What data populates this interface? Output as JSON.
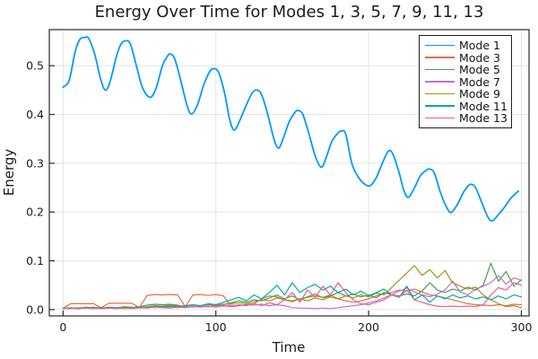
{
  "chart_data": {
    "type": "line",
    "title": "Energy Over Time for Modes 1, 3, 5, 7, 9, 11, 13",
    "xlabel": "Time",
    "ylabel": "Energy",
    "xlim": [
      -9,
      305
    ],
    "ylim": [
      -0.013,
      0.574
    ],
    "xticks": [
      0,
      100,
      200,
      300
    ],
    "xtick_labels": [
      "0",
      "100",
      "200",
      "300"
    ],
    "yticks": [
      0.0,
      0.1,
      0.2,
      0.3,
      0.4,
      0.5
    ],
    "ytick_labels": [
      "0.0",
      "0.1",
      "0.2",
      "0.3",
      "0.4",
      "0.5"
    ],
    "grid": true,
    "legend_position": "top-right",
    "background_color": "#ffffff",
    "shared_x": [
      0,
      5,
      10,
      15,
      20,
      25,
      30,
      35,
      40,
      45,
      50,
      55,
      60,
      65,
      70,
      75,
      80,
      85,
      90,
      95,
      100,
      105,
      110,
      115,
      120,
      125,
      130,
      135,
      140,
      145,
      150,
      155,
      160,
      165,
      170,
      175,
      180,
      185,
      190,
      195,
      200,
      205,
      210,
      215,
      220,
      225,
      230,
      235,
      240,
      245,
      250,
      255,
      260,
      265,
      270,
      275,
      280,
      285,
      290,
      295,
      300
    ],
    "series": [
      {
        "name": "Mode 1",
        "color": "#009AFA",
        "line_width": 1.8,
        "smooth": true,
        "x": [
          0,
          4,
          8,
          11,
          14,
          17,
          21,
          25,
          28,
          31,
          35,
          38,
          41,
          44,
          48,
          52,
          57,
          61,
          65,
          68,
          70,
          73,
          77,
          81,
          84,
          88,
          92,
          96,
          99,
          102,
          106,
          109,
          112,
          116,
          120,
          124,
          127,
          130,
          134,
          138,
          141,
          144,
          148,
          152,
          154,
          157,
          161,
          165,
          169,
          172,
          176,
          180,
          182,
          185,
          189,
          193,
          197,
          201,
          205,
          209,
          213,
          216,
          220,
          223,
          226,
          230,
          234,
          238,
          240,
          243,
          247,
          251,
          254,
          258,
          262,
          265,
          267,
          270,
          274,
          278,
          281,
          285,
          289,
          293,
          298
        ],
        "y": [
          0.456,
          0.47,
          0.53,
          0.554,
          0.558,
          0.555,
          0.52,
          0.468,
          0.45,
          0.47,
          0.52,
          0.545,
          0.551,
          0.545,
          0.5,
          0.455,
          0.435,
          0.455,
          0.5,
          0.518,
          0.524,
          0.515,
          0.47,
          0.42,
          0.401,
          0.42,
          0.46,
          0.488,
          0.494,
          0.485,
          0.44,
          0.39,
          0.368,
          0.39,
          0.42,
          0.445,
          0.45,
          0.44,
          0.4,
          0.35,
          0.331,
          0.35,
          0.385,
          0.405,
          0.408,
          0.4,
          0.36,
          0.315,
          0.292,
          0.31,
          0.345,
          0.362,
          0.366,
          0.36,
          0.3,
          0.273,
          0.258,
          0.254,
          0.27,
          0.3,
          0.325,
          0.318,
          0.28,
          0.245,
          0.23,
          0.25,
          0.275,
          0.286,
          0.288,
          0.28,
          0.24,
          0.21,
          0.199,
          0.215,
          0.24,
          0.253,
          0.257,
          0.25,
          0.22,
          0.19,
          0.182,
          0.195,
          0.21,
          0.228,
          0.243
        ]
      },
      {
        "name": "Mode 3",
        "color": "#E26E47",
        "line_width": 1.2,
        "smooth": false,
        "y": [
          0.003,
          0.012,
          0.012,
          0.012,
          0.012,
          0.004,
          0.013,
          0.013,
          0.013,
          0.013,
          0.004,
          0.029,
          0.031,
          0.03,
          0.031,
          0.03,
          0.006,
          0.03,
          0.031,
          0.029,
          0.031,
          0.028,
          0.006,
          0.008,
          0.01,
          0.012,
          0.022,
          0.028,
          0.026,
          0.02,
          0.018,
          0.022,
          0.025,
          0.028,
          0.025,
          0.03,
          0.022,
          0.018,
          0.015,
          0.018,
          0.022,
          0.028,
          0.033,
          0.035,
          0.04,
          0.038,
          0.042,
          0.036,
          0.03,
          0.028,
          0.024,
          0.02,
          0.016,
          0.012,
          0.01,
          0.009,
          0.008,
          0.01,
          0.008,
          0.011,
          0.01
        ]
      },
      {
        "name": "Mode 5",
        "color": "#3DA44E",
        "line_width": 1.2,
        "smooth": false,
        "y": [
          0.003,
          0.002,
          0.004,
          0.003,
          0.005,
          0.003,
          0.004,
          0.003,
          0.005,
          0.004,
          0.006,
          0.009,
          0.011,
          0.01,
          0.011,
          0.009,
          0.005,
          0.006,
          0.007,
          0.006,
          0.008,
          0.01,
          0.014,
          0.018,
          0.015,
          0.02,
          0.018,
          0.024,
          0.03,
          0.022,
          0.028,
          0.02,
          0.026,
          0.032,
          0.024,
          0.028,
          0.035,
          0.028,
          0.032,
          0.026,
          0.03,
          0.024,
          0.035,
          0.03,
          0.028,
          0.032,
          0.028,
          0.038,
          0.055,
          0.04,
          0.035,
          0.042,
          0.038,
          0.046,
          0.04,
          0.05,
          0.095,
          0.058,
          0.078,
          0.048,
          0.061
        ]
      },
      {
        "name": "Mode 7",
        "color": "#C271D2",
        "line_width": 1.2,
        "smooth": false,
        "y": [
          0.002,
          0.003,
          0.002,
          0.004,
          0.003,
          0.002,
          0.004,
          0.003,
          0.002,
          0.004,
          0.003,
          0.005,
          0.004,
          0.006,
          0.005,
          0.004,
          0.006,
          0.005,
          0.007,
          0.006,
          0.008,
          0.007,
          0.009,
          0.008,
          0.01,
          0.009,
          0.011,
          0.008,
          0.01,
          0.008,
          0.004,
          0.003,
          0.003,
          0.002,
          0.003,
          0.002,
          0.004,
          0.006,
          0.008,
          0.01,
          0.014,
          0.018,
          0.024,
          0.03,
          0.038,
          0.044,
          0.036,
          0.03,
          0.026,
          0.032,
          0.04,
          0.058,
          0.036,
          0.03,
          0.042,
          0.048,
          0.055,
          0.07,
          0.052,
          0.065,
          0.06
        ]
      },
      {
        "name": "Mode 9",
        "color": "#AC8D18",
        "line_width": 1.2,
        "smooth": false,
        "y": [
          0.003,
          0.004,
          0.003,
          0.005,
          0.004,
          0.003,
          0.005,
          0.004,
          0.006,
          0.005,
          0.004,
          0.006,
          0.008,
          0.007,
          0.009,
          0.008,
          0.007,
          0.009,
          0.008,
          0.01,
          0.009,
          0.011,
          0.012,
          0.014,
          0.012,
          0.016,
          0.02,
          0.018,
          0.024,
          0.02,
          0.016,
          0.022,
          0.018,
          0.024,
          0.02,
          0.026,
          0.022,
          0.028,
          0.024,
          0.03,
          0.026,
          0.034,
          0.03,
          0.045,
          0.06,
          0.075,
          0.09,
          0.07,
          0.082,
          0.065,
          0.08,
          0.055,
          0.048,
          0.042,
          0.046,
          0.03,
          0.02,
          0.012,
          0.006,
          0.008,
          0.004
        ]
      },
      {
        "name": "Mode 11",
        "color": "#00AAAE",
        "line_width": 1.2,
        "smooth": false,
        "y": [
          0.002,
          0.003,
          0.002,
          0.003,
          0.002,
          0.004,
          0.003,
          0.002,
          0.004,
          0.003,
          0.005,
          0.004,
          0.006,
          0.005,
          0.007,
          0.006,
          0.008,
          0.01,
          0.008,
          0.012,
          0.01,
          0.015,
          0.02,
          0.025,
          0.018,
          0.03,
          0.022,
          0.035,
          0.05,
          0.03,
          0.055,
          0.035,
          0.045,
          0.052,
          0.04,
          0.048,
          0.035,
          0.042,
          0.03,
          0.038,
          0.028,
          0.035,
          0.042,
          0.03,
          0.025,
          0.048,
          0.02,
          0.03,
          0.015,
          0.028,
          0.022,
          0.03,
          0.024,
          0.028,
          0.022,
          0.026,
          0.02,
          0.028,
          0.022,
          0.03,
          0.026
        ]
      },
      {
        "name": "Mode 13",
        "color": "#ED5D92",
        "line_width": 1.2,
        "smooth": false,
        "y": [
          0.002,
          0.003,
          0.002,
          0.004,
          0.003,
          0.002,
          0.003,
          0.004,
          0.003,
          0.002,
          0.004,
          0.003,
          0.005,
          0.004,
          0.003,
          0.005,
          0.004,
          0.006,
          0.005,
          0.007,
          0.005,
          0.008,
          0.006,
          0.01,
          0.008,
          0.012,
          0.008,
          0.014,
          0.01,
          0.02,
          0.035,
          0.015,
          0.04,
          0.025,
          0.048,
          0.03,
          0.055,
          0.035,
          0.02,
          0.012,
          0.01,
          0.015,
          0.02,
          0.03,
          0.025,
          0.04,
          0.02,
          0.015,
          0.01,
          0.007,
          0.006,
          0.007,
          0.006,
          0.007,
          0.006,
          0.01,
          0.03,
          0.045,
          0.04,
          0.055,
          0.05
        ]
      }
    ]
  }
}
